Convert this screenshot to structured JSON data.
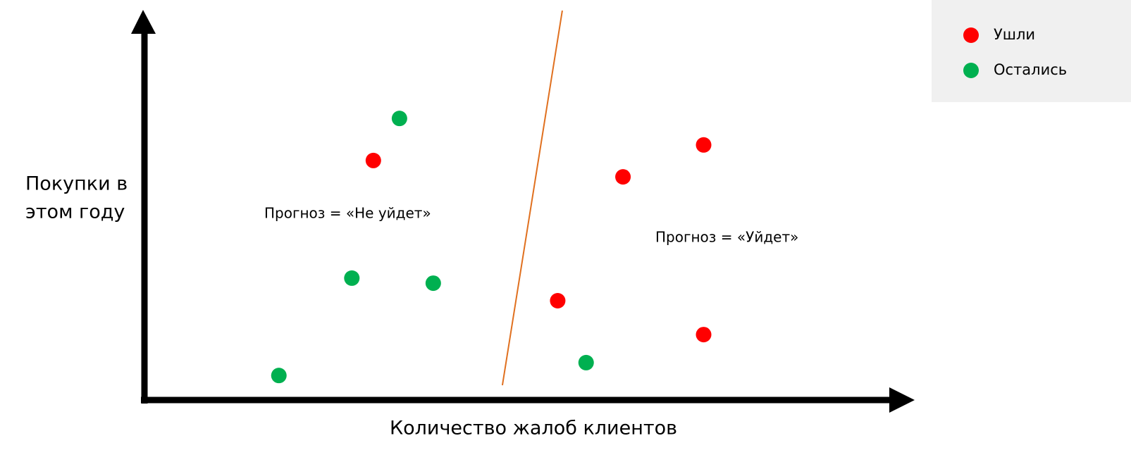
{
  "chart_data": {
    "type": "scatter",
    "xlabel": "Количество жалоб клиентов",
    "ylabel": [
      "Покупки в",
      "этом году"
    ],
    "xlim": [
      0,
      100
    ],
    "ylim": [
      0,
      100
    ],
    "series": [
      {
        "name": "Ушли",
        "color": "#ff0000",
        "x": [
          29.8,
          62.3,
          72.8,
          53.8,
          72.8
        ],
        "values": [
          61.5,
          57.3,
          65.5,
          25.5,
          16.8
        ]
      },
      {
        "name": "Остались",
        "color": "#00b050",
        "x": [
          33.2,
          27.0,
          37.6,
          17.5,
          57.5
        ],
        "values": [
          72.3,
          31.3,
          30.0,
          6.3,
          9.6
        ]
      }
    ],
    "boundary": {
      "color": "#e0701f",
      "x": [
        54.4,
        46.6
      ],
      "values": [
        100,
        3.8
      ]
    },
    "annotations": [
      "Прогноз = «Не уйдет»",
      "Прогноз = «Уйдет»"
    ],
    "legend": "top-right"
  }
}
